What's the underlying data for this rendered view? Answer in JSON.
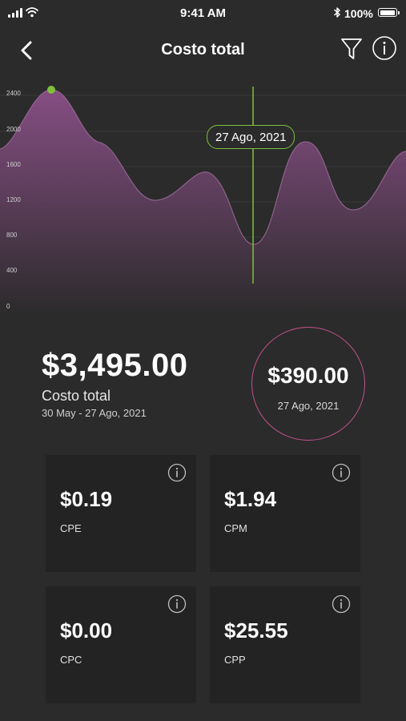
{
  "status_bar": {
    "time": "9:41 AM",
    "battery_percent": "100%",
    "battery_level": 1.0
  },
  "nav": {
    "title": "Costo total",
    "back_icon": "chevron-left-icon",
    "filter_icon": "filter-icon",
    "info_icon": "info-icon"
  },
  "chart": {
    "y_ticks": [
      "2400",
      "2000",
      "1600",
      "1200",
      "800",
      "400",
      "0"
    ],
    "tooltip_date": "27 Ago, 2021",
    "line_color": "#7dc13c",
    "area_color": "#8a4f87"
  },
  "summary": {
    "total_value": "$3,495.00",
    "total_label": "Costo total",
    "date_range": "30 May - 27 Ago, 2021",
    "selected_value": "$390.00",
    "selected_date": "27 Ago, 2021",
    "circle_border": "#c0508a"
  },
  "metrics": [
    {
      "value": "$0.19",
      "label": "CPE"
    },
    {
      "value": "$1.94",
      "label": "CPM"
    },
    {
      "value": "$0.00",
      "label": "CPC"
    },
    {
      "value": "$25.55",
      "label": "CPP"
    }
  ]
}
